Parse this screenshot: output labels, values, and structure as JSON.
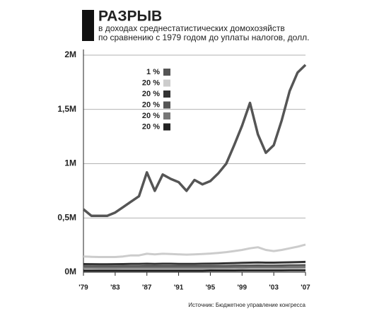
{
  "chart_data": {
    "type": "line",
    "title": "РАЗРЫВ",
    "subtitle": [
      "в доходах среднестатистических домохозяйств",
      "по сравнению с 1979 годом до уплаты налогов, долл."
    ],
    "source": "Источник: Бюджетное управление конгресса",
    "x": [
      1979,
      1980,
      1981,
      1982,
      1983,
      1984,
      1985,
      1986,
      1987,
      1988,
      1989,
      1990,
      1991,
      1992,
      1993,
      1994,
      1995,
      1996,
      1997,
      1998,
      1999,
      2000,
      2001,
      2002,
      2003,
      2004,
      2005,
      2006,
      2007
    ],
    "xlim": [
      1979,
      2007
    ],
    "xticks": [
      {
        "value": 1979,
        "label": "'79"
      },
      {
        "value": 1983,
        "label": "'83"
      },
      {
        "value": 1987,
        "label": "'87"
      },
      {
        "value": 1991,
        "label": "'91"
      },
      {
        "value": 1995,
        "label": "'95"
      },
      {
        "value": 1999,
        "label": "'99"
      },
      {
        "value": 2003,
        "label": "'03"
      },
      {
        "value": 2007,
        "label": "'07"
      }
    ],
    "ylim": [
      0,
      2000000
    ],
    "yticks": [
      {
        "value": 0,
        "label": "0M"
      },
      {
        "value": 500000,
        "label": "0,5M"
      },
      {
        "value": 1000000,
        "label": "1M"
      },
      {
        "value": 1500000,
        "label": "1,5M"
      },
      {
        "value": 2000000,
        "label": "2M"
      }
    ],
    "grid": true,
    "legend": "top-left",
    "series": [
      {
        "name": "1 %",
        "color": "#555555",
        "values": [
          580000,
          520000,
          520000,
          520000,
          550000,
          600000,
          650000,
          700000,
          920000,
          750000,
          900000,
          860000,
          830000,
          750000,
          850000,
          810000,
          840000,
          910000,
          1000000,
          1170000,
          1350000,
          1560000,
          1270000,
          1100000,
          1170000,
          1400000,
          1670000,
          1840000,
          1910000
        ]
      },
      {
        "name": "20 %",
        "color": "#cccccc",
        "values": [
          145000,
          142000,
          140000,
          140000,
          140000,
          145000,
          155000,
          155000,
          170000,
          165000,
          170000,
          168000,
          165000,
          162000,
          165000,
          168000,
          172000,
          178000,
          185000,
          195000,
          205000,
          220000,
          230000,
          205000,
          195000,
          205000,
          220000,
          235000,
          255000
        ]
      },
      {
        "name": "20 %",
        "color": "#333333",
        "values": [
          75000,
          74000,
          73000,
          73000,
          74000,
          75000,
          76000,
          77000,
          78000,
          77000,
          78000,
          78000,
          77000,
          77000,
          77000,
          78000,
          79000,
          80000,
          82000,
          84000,
          86000,
          88000,
          90000,
          88000,
          88000,
          89000,
          91000,
          93000,
          95000
        ]
      },
      {
        "name": "20 %",
        "color": "#555555",
        "values": [
          55000,
          54000,
          54000,
          54000,
          54000,
          55000,
          55000,
          55000,
          56000,
          56000,
          56000,
          56000,
          56000,
          56000,
          56000,
          56000,
          57000,
          57000,
          58000,
          59000,
          60000,
          61000,
          62000,
          61000,
          61000,
          62000,
          63000,
          64000,
          65000
        ]
      },
      {
        "name": "20 %",
        "color": "#777777",
        "values": [
          40000,
          40000,
          39000,
          39000,
          39000,
          40000,
          40000,
          40000,
          40000,
          40000,
          40000,
          40000,
          40000,
          40000,
          40000,
          40000,
          40000,
          41000,
          41000,
          42000,
          42000,
          43000,
          43000,
          43000,
          43000,
          43000,
          44000,
          44000,
          45000
        ]
      },
      {
        "name": "20 %",
        "color": "#222222",
        "values": [
          15000,
          15000,
          15000,
          15000,
          15000,
          15000,
          15000,
          15000,
          15000,
          15000,
          15000,
          15000,
          15000,
          15000,
          15000,
          15000,
          16000,
          16000,
          16000,
          16000,
          17000,
          17000,
          17000,
          17000,
          17000,
          17000,
          18000,
          18000,
          18000
        ]
      }
    ]
  }
}
